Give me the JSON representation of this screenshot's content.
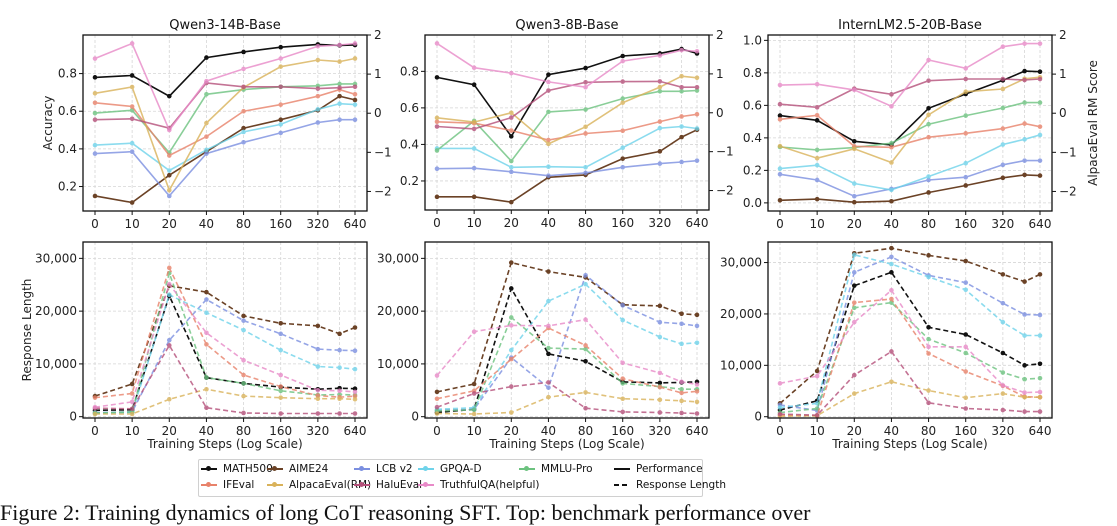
{
  "legend": {
    "items": [
      {
        "name": "MATH500",
        "color": "#111111"
      },
      {
        "name": "AIME24",
        "color": "#6b4226"
      },
      {
        "name": "LCB v2",
        "color": "#7b8fe0"
      },
      {
        "name": "GPQA-D",
        "color": "#6fd3ea"
      },
      {
        "name": "MMLU-Pro",
        "color": "#6cc27f"
      },
      {
        "name": "IFEval",
        "color": "#e8826a"
      },
      {
        "name": "AlpacaEval(RM)",
        "color": "#d9b25a"
      },
      {
        "name": "HaluEval",
        "color": "#b5507a"
      },
      {
        "name": "TruthfulQA(helpful)",
        "color": "#e88ac8"
      }
    ],
    "styles": [
      {
        "name": "Performance",
        "line": "solid"
      },
      {
        "name": "Response Length",
        "line": "dashed"
      }
    ]
  },
  "caption": "Figure 2: Training dynamics of long CoT reasoning SFT. Top: benchmark performance over",
  "chart_data": [
    {
      "type": "line",
      "title": "Qwen3-14B-Base",
      "xlabel": "",
      "ylabel": "Accuracy",
      "y2label": "",
      "x": [
        0,
        10,
        20,
        40,
        80,
        160,
        320,
        480,
        640
      ],
      "xscale": "log",
      "xticks": [
        "0",
        "10",
        "20",
        "40",
        "80",
        "160",
        "320",
        "640"
      ],
      "ylim": [
        0.07,
        1.005
      ],
      "yticks": [
        0.2,
        0.4,
        0.6,
        0.8
      ],
      "ytick_labels": [
        "0.2",
        "0.4",
        "0.6",
        "0.8"
      ],
      "y2lim": [
        -2.5,
        2
      ],
      "y2ticks": [
        -2,
        -1,
        0,
        1,
        2
      ],
      "y2tick_labels": [
        "−2",
        "−1",
        "0",
        "1",
        "2"
      ],
      "grid": true,
      "line": "solid",
      "series": [
        {
          "name": "MATH500",
          "values": [
            0.78,
            0.79,
            0.68,
            0.885,
            0.915,
            0.94,
            0.955,
            0.95,
            0.952
          ]
        },
        {
          "name": "AIME24",
          "values": [
            0.15,
            0.115,
            0.26,
            0.385,
            0.51,
            0.555,
            0.605,
            0.68,
            0.66
          ]
        },
        {
          "name": "LCB v2",
          "values": [
            0.375,
            0.385,
            0.15,
            0.375,
            0.435,
            0.485,
            0.54,
            0.555,
            0.555
          ]
        },
        {
          "name": "GPQA-D",
          "values": [
            0.42,
            0.43,
            0.285,
            0.395,
            0.49,
            0.53,
            0.61,
            0.64,
            0.635
          ]
        },
        {
          "name": "MMLU-Pro",
          "values": [
            0.59,
            0.605,
            0.38,
            0.69,
            0.715,
            0.73,
            0.735,
            0.745,
            0.745
          ]
        },
        {
          "name": "IFEval",
          "values": [
            0.645,
            0.625,
            0.365,
            0.465,
            0.6,
            0.635,
            0.68,
            0.715,
            0.69
          ]
        },
        {
          "name": "AlpacaEval(RM)",
          "axis": "right",
          "values": [
            0.51,
            0.67,
            -1.97,
            -0.25,
            0.66,
            1.19,
            1.36,
            1.32,
            1.4
          ]
        },
        {
          "name": "HaluEval",
          "values": [
            0.555,
            0.56,
            0.51,
            0.75,
            0.73,
            0.73,
            0.72,
            0.725,
            0.73
          ]
        },
        {
          "name": "TruthfulQA(helpful)",
          "values": [
            0.88,
            0.96,
            0.5,
            0.76,
            0.825,
            0.88,
            0.945,
            0.952,
            0.96
          ]
        }
      ]
    },
    {
      "type": "line",
      "title": "Qwen3-8B-Base",
      "xlabel": "",
      "ylabel": "",
      "y2label": "",
      "x": [
        0,
        10,
        20,
        40,
        80,
        160,
        320,
        480,
        640
      ],
      "xscale": "log",
      "xticks": [
        "0",
        "10",
        "20",
        "40",
        "80",
        "160",
        "320",
        "640"
      ],
      "ylim": [
        0.041,
        0.999
      ],
      "yticks": [
        0.2,
        0.4,
        0.6,
        0.8
      ],
      "ytick_labels": [
        "0.2",
        "0.4",
        "0.6",
        "0.8"
      ],
      "y2lim": [
        -2.5,
        2
      ],
      "y2ticks": [
        -2,
        -1,
        0,
        1,
        2
      ],
      "y2tick_labels": [
        "−2",
        "−1",
        "0",
        "1",
        "2"
      ],
      "grid": true,
      "line": "solid",
      "series": [
        {
          "name": "MATH500",
          "values": [
            0.767,
            0.727,
            0.444,
            0.782,
            0.818,
            0.884,
            0.898,
            0.922,
            0.898
          ]
        },
        {
          "name": "AIME24",
          "values": [
            0.113,
            0.113,
            0.084,
            0.22,
            0.233,
            0.322,
            0.362,
            0.44,
            0.48
          ]
        },
        {
          "name": "LCB v2",
          "values": [
            0.267,
            0.27,
            0.25,
            0.229,
            0.244,
            0.275,
            0.295,
            0.304,
            0.311
          ]
        },
        {
          "name": "GPQA-D",
          "values": [
            0.378,
            0.378,
            0.275,
            0.278,
            0.275,
            0.382,
            0.489,
            0.498,
            0.487
          ]
        },
        {
          "name": "MMLU-Pro",
          "values": [
            0.367,
            0.529,
            0.309,
            0.578,
            0.591,
            0.651,
            0.691,
            0.691,
            0.695
          ]
        },
        {
          "name": "IFEval",
          "values": [
            0.524,
            0.516,
            0.476,
            0.424,
            0.46,
            0.475,
            0.525,
            0.553,
            0.565
          ]
        },
        {
          "name": "AlpacaEval(RM)",
          "axis": "right",
          "values": [
            -0.13,
            -0.24,
            0.0,
            -0.8,
            -0.36,
            0.26,
            0.66,
            0.94,
            0.9
          ]
        },
        {
          "name": "HaluEval",
          "values": [
            0.498,
            0.485,
            0.547,
            0.695,
            0.74,
            0.744,
            0.745,
            0.713,
            0.713
          ]
        },
        {
          "name": "TruthfulQA(helpful)",
          "values": [
            0.953,
            0.82,
            0.79,
            0.742,
            0.713,
            0.856,
            0.887,
            0.916,
            0.91
          ]
        }
      ]
    },
    {
      "type": "line",
      "title": "InternLM2.5-20B-Base",
      "xlabel": "",
      "ylabel": "",
      "y2label": "AlpacaEval RM Score",
      "x": [
        0,
        10,
        20,
        40,
        80,
        160,
        320,
        480,
        640
      ],
      "xscale": "log",
      "xticks": [
        "0",
        "10",
        "20",
        "40",
        "80",
        "160",
        "320",
        "640"
      ],
      "ylim": [
        -0.05,
        1.033
      ],
      "yticks": [
        0.0,
        0.2,
        0.4,
        0.6,
        0.8,
        1.0
      ],
      "ytick_labels": [
        "0.0",
        "0.2",
        "0.4",
        "0.6",
        "0.8",
        "1.0"
      ],
      "y2lim": [
        -2.5,
        2
      ],
      "y2ticks": [
        -2,
        -1,
        0,
        1,
        2
      ],
      "y2tick_labels": [
        "−2",
        "−1",
        "0",
        "1",
        "2"
      ],
      "grid": true,
      "line": "solid",
      "series": [
        {
          "name": "MATH500",
          "values": [
            0.537,
            0.508,
            0.379,
            0.357,
            0.582,
            0.67,
            0.754,
            0.811,
            0.807
          ]
        },
        {
          "name": "AIME24",
          "values": [
            0.016,
            0.023,
            0.004,
            0.01,
            0.064,
            0.107,
            0.154,
            0.172,
            0.168
          ]
        },
        {
          "name": "LCB v2",
          "values": [
            0.176,
            0.141,
            0.041,
            0.086,
            0.141,
            0.158,
            0.234,
            0.26,
            0.26
          ]
        },
        {
          "name": "GPQA-D",
          "values": [
            0.211,
            0.232,
            0.119,
            0.08,
            0.162,
            0.244,
            0.359,
            0.391,
            0.418
          ]
        },
        {
          "name": "MMLU-Pro",
          "values": [
            0.344,
            0.326,
            0.34,
            0.367,
            0.484,
            0.537,
            0.584,
            0.617,
            0.617
          ]
        },
        {
          "name": "IFEval",
          "values": [
            0.514,
            0.539,
            0.348,
            0.342,
            0.404,
            0.428,
            0.457,
            0.488,
            0.469
          ]
        },
        {
          "name": "AlpacaEval(RM)",
          "axis": "right",
          "values": [
            -0.84,
            -1.15,
            -0.91,
            -1.26,
            -0.04,
            0.55,
            0.62,
            0.88,
            0.92
          ]
        },
        {
          "name": "HaluEval",
          "values": [
            0.607,
            0.588,
            0.703,
            0.668,
            0.752,
            0.762,
            0.762,
            0.756,
            0.762
          ]
        },
        {
          "name": "TruthfulQA(helpful)",
          "values": [
            0.725,
            0.73,
            0.695,
            0.594,
            0.879,
            0.828,
            0.961,
            0.98,
            0.98
          ]
        }
      ]
    },
    {
      "type": "line",
      "title": "",
      "xlabel": "Training Steps (Log Scale)",
      "ylabel": "Response Length",
      "x": [
        0,
        10,
        20,
        40,
        80,
        160,
        320,
        480,
        640
      ],
      "xscale": "log",
      "xticks": [
        "0",
        "10",
        "20",
        "40",
        "80",
        "160",
        "320",
        "640"
      ],
      "ylim": [
        -250,
        33100
      ],
      "yticks": [
        0,
        10000,
        20000,
        30000
      ],
      "ytick_labels": [
        "0",
        "10,000",
        "20,000",
        "30,000"
      ],
      "grid": true,
      "line": "dashed",
      "series": [
        {
          "name": "MATH500",
          "values": [
            1200,
            1300,
            22900,
            7400,
            6300,
            5600,
            5200,
            5400,
            5300
          ]
        },
        {
          "name": "AIME24",
          "values": [
            3900,
            6200,
            24800,
            23600,
            19100,
            17700,
            17200,
            15700,
            16900
          ]
        },
        {
          "name": "LCB v2",
          "values": [
            800,
            900,
            14500,
            22200,
            18200,
            15700,
            12800,
            12600,
            12500
          ]
        },
        {
          "name": "GPQA-D",
          "values": [
            600,
            800,
            23100,
            19700,
            16400,
            12600,
            9500,
            9300,
            9000
          ]
        },
        {
          "name": "MMLU-Pro",
          "values": [
            700,
            900,
            27200,
            7400,
            6300,
            4900,
            4100,
            4200,
            4100
          ]
        },
        {
          "name": "IFEval",
          "values": [
            3600,
            4400,
            28200,
            13700,
            7900,
            5700,
            4000,
            3700,
            3900
          ]
        },
        {
          "name": "AlpacaEval(RM)",
          "values": [
            500,
            500,
            3300,
            5200,
            3900,
            3600,
            3400,
            3400,
            3300
          ]
        },
        {
          "name": "HaluEval",
          "values": [
            1600,
            1500,
            13500,
            1700,
            700,
            600,
            600,
            600,
            600
          ]
        },
        {
          "name": "TruthfulQA(helpful)",
          "values": [
            1800,
            2800,
            25100,
            15900,
            10700,
            7900,
            5000,
            4900,
            4700
          ]
        }
      ]
    },
    {
      "type": "line",
      "title": "",
      "xlabel": "Training Steps (Log Scale)",
      "ylabel": "",
      "x": [
        0,
        10,
        20,
        40,
        80,
        160,
        320,
        480,
        640
      ],
      "xscale": "log",
      "xticks": [
        "0",
        "10",
        "20",
        "40",
        "80",
        "160",
        "320",
        "640"
      ],
      "ylim": [
        -250,
        33100
      ],
      "yticks": [
        0,
        10000,
        20000,
        30000
      ],
      "ytick_labels": [
        "0",
        "10,000",
        "20,000",
        "30,000"
      ],
      "grid": true,
      "line": "dashed",
      "series": [
        {
          "name": "MATH500",
          "values": [
            800,
            1400,
            24300,
            11900,
            10500,
            6600,
            6400,
            6500,
            6600
          ]
        },
        {
          "name": "AIME24",
          "values": [
            4700,
            6200,
            29200,
            27500,
            26400,
            21200,
            21000,
            19500,
            19300
          ]
        },
        {
          "name": "LCB v2",
          "values": [
            1200,
            1400,
            11200,
            5500,
            26800,
            21100,
            17900,
            17600,
            17200
          ]
        },
        {
          "name": "GPQA-D",
          "values": [
            1400,
            1700,
            12600,
            21900,
            25100,
            18300,
            15100,
            13800,
            14000
          ]
        },
        {
          "name": "MMLU-Pro",
          "values": [
            1100,
            1300,
            18800,
            13000,
            12800,
            6300,
            5700,
            5200,
            5200
          ]
        },
        {
          "name": "IFEval",
          "values": [
            3400,
            4900,
            10900,
            16800,
            13500,
            7200,
            5600,
            4500,
            4800
          ]
        },
        {
          "name": "AlpacaEval(RM)",
          "values": [
            600,
            500,
            800,
            3700,
            4600,
            3400,
            3200,
            3000,
            2800
          ]
        },
        {
          "name": "HaluEval",
          "values": [
            1800,
            4400,
            5700,
            6500,
            1600,
            900,
            800,
            700,
            600
          ]
        },
        {
          "name": "TruthfulQA(helpful)",
          "values": [
            7800,
            16100,
            17300,
            17200,
            18400,
            10200,
            8300,
            6600,
            6100
          ]
        }
      ]
    },
    {
      "type": "line",
      "title": "",
      "xlabel": "Training Steps (Log Scale)",
      "ylabel": "",
      "x": [
        0,
        10,
        20,
        40,
        80,
        160,
        320,
        480,
        640
      ],
      "xscale": "log",
      "xticks": [
        "0",
        "10",
        "20",
        "40",
        "80",
        "160",
        "320",
        "640"
      ],
      "ylim": [
        -250,
        34000
      ],
      "yticks": [
        0,
        10000,
        20000,
        30000
      ],
      "ytick_labels": [
        "0",
        "10,000",
        "20,000",
        "30,000"
      ],
      "grid": true,
      "line": "dashed",
      "series": [
        {
          "name": "MATH500",
          "values": [
            1300,
            3100,
            25500,
            28100,
            17400,
            16000,
            12400,
            10000,
            10300
          ]
        },
        {
          "name": "AIME24",
          "values": [
            2600,
            8900,
            31800,
            32800,
            31400,
            30300,
            27700,
            26300,
            27700
          ]
        },
        {
          "name": "LCB v2",
          "values": [
            2300,
            1200,
            28100,
            31100,
            27500,
            26100,
            22100,
            19900,
            19800
          ]
        },
        {
          "name": "GPQA-D",
          "values": [
            1800,
            2600,
            31500,
            29700,
            27200,
            24700,
            18400,
            15800,
            15800
          ]
        },
        {
          "name": "MMLU-Pro",
          "values": [
            800,
            1600,
            21200,
            22200,
            15100,
            12400,
            8600,
            7300,
            7500
          ]
        },
        {
          "name": "IFEval",
          "values": [
            300,
            200,
            22200,
            22900,
            12300,
            8800,
            6000,
            3900,
            3800
          ]
        },
        {
          "name": "AlpacaEval(RM)",
          "values": [
            100,
            200,
            4500,
            6800,
            5100,
            3700,
            4500,
            3800,
            3800
          ]
        },
        {
          "name": "HaluEval",
          "values": [
            500,
            300,
            8100,
            12700,
            2700,
            1600,
            1300,
            1000,
            1000
          ]
        },
        {
          "name": "TruthfulQA(helpful)",
          "values": [
            6500,
            7900,
            18400,
            24600,
            13600,
            13600,
            6100,
            4700,
            4800
          ]
        }
      ]
    }
  ]
}
